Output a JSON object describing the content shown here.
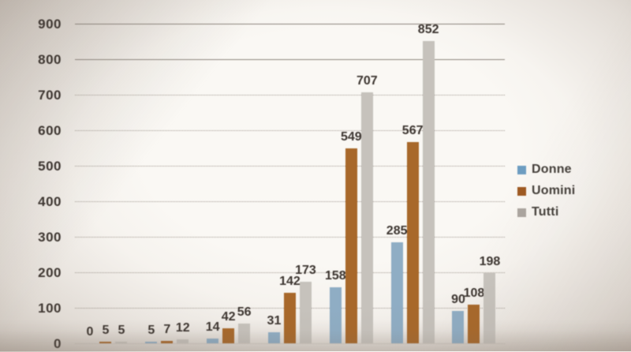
{
  "chart_data": {
    "type": "bar",
    "title": "",
    "xlabel": "",
    "ylabel": "",
    "ylim": [
      0,
      900
    ],
    "ytick_step": 100,
    "yticks": [
      900,
      800,
      700,
      600,
      500,
      400,
      300,
      200,
      100,
      0
    ],
    "grid": "horizontal-dotted, top two lines solid",
    "legend_position": "right",
    "group_count": 7,
    "series": [
      {
        "name": "Donne",
        "color": "#8fadc4",
        "values": [
          0,
          5,
          14,
          31,
          158,
          285,
          90
        ]
      },
      {
        "name": "Uomini",
        "color": "#a8682a",
        "values": [
          5,
          7,
          42,
          142,
          549,
          567,
          108
        ]
      },
      {
        "name": "Tutti",
        "color": "#c6c2bc",
        "values": [
          5,
          12,
          56,
          173,
          707,
          852,
          198
        ]
      }
    ],
    "data_labels_shown": true,
    "data_labels": [
      [
        "0",
        "5",
        "5"
      ],
      [
        "5",
        "7",
        "12"
      ],
      [
        "14",
        "42",
        "56"
      ],
      [
        "31",
        "142",
        "173"
      ],
      [
        "158",
        "549",
        "707"
      ],
      [
        "285",
        "567",
        "852"
      ],
      [
        "90",
        "108",
        "198"
      ]
    ]
  },
  "legend": {
    "items": [
      {
        "label": "Donne",
        "color": "#6d9dc1"
      },
      {
        "label": "Uomini",
        "color": "#9e5a22"
      },
      {
        "label": "Tutti",
        "color": "#aaa49e"
      }
    ]
  },
  "colors": {
    "background": "#f2eee9",
    "text": "#3c3530",
    "gridline_solid": "#8d857d",
    "gridline_dotted": "#a09890"
  }
}
